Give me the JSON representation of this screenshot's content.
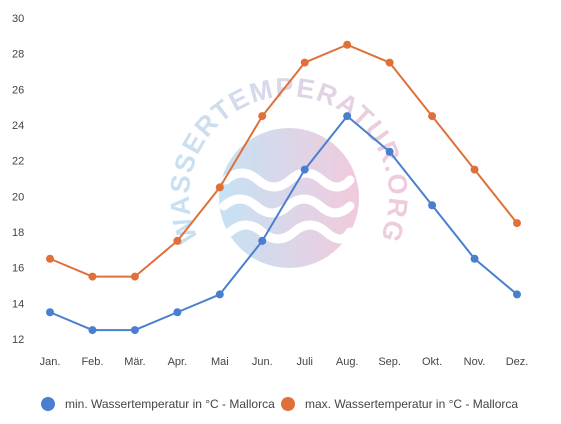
{
  "chart_data": {
    "type": "line",
    "categories": [
      "Jan.",
      "Feb.",
      "Mär.",
      "Apr.",
      "Mai",
      "Jun.",
      "Juli",
      "Aug.",
      "Sep.",
      "Okt.",
      "Nov.",
      "Dez."
    ],
    "ylim": [
      12,
      30
    ],
    "yticks": [
      12,
      14,
      16,
      18,
      20,
      22,
      24,
      26,
      28,
      30
    ],
    "grid": false,
    "legend_position": "bottom",
    "series": [
      {
        "name": "min. Wassertemperatur in °C - Mallorca",
        "color": "#4a7fd0",
        "values": [
          13.5,
          12.5,
          12.5,
          13.5,
          14.5,
          17.5,
          21.5,
          24.5,
          22.5,
          19.5,
          16.5,
          14.5
        ]
      },
      {
        "name": "max. Wassertemperatur in °C - Mallorca",
        "color": "#e0703a",
        "values": [
          16.5,
          15.5,
          15.5,
          17.5,
          20.5,
          24.5,
          27.5,
          28.5,
          27.5,
          24.5,
          21.5,
          18.5
        ]
      }
    ],
    "watermark": "WASSERTEMPERATUR.ORG"
  }
}
